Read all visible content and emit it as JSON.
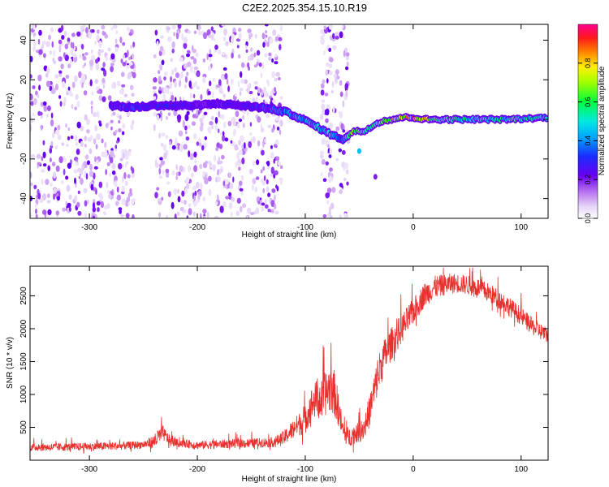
{
  "figure": {
    "title": "C2E2.2025.354.15.10.R19"
  },
  "chart_data": [
    {
      "type": "heatmap",
      "title": "",
      "xlabel": "Height of straight line (km)",
      "ylabel": "Frequency (Hz)",
      "xlim": [
        -355,
        125
      ],
      "ylim": [
        -50,
        48
      ],
      "x_ticks": [
        -300,
        -200,
        -100,
        0,
        100
      ],
      "x_tick_labels": [
        "-300",
        "-200",
        "-100",
        "0",
        "100"
      ],
      "y_ticks": [
        -40,
        -20,
        0,
        20,
        40
      ],
      "y_tick_labels": [
        "-40",
        "-20",
        "0",
        "20",
        "40"
      ],
      "colorbar": {
        "label": "Normalized spectral amplitude",
        "range": [
          0,
          1
        ],
        "ticks": [
          0.0,
          0.2,
          0.4,
          0.6,
          0.8
        ],
        "tick_labels": [
          "0.0",
          "0.2",
          "0.4",
          "0.6",
          "0.8"
        ],
        "colormap": "rainbow (white-violet-blue-cyan-green-yellow-red-magenta)"
      },
      "ridge": {
        "description_values": "dominant frequency track (x in km, y in Hz, amplitude 0-1)",
        "points": [
          [
            -280,
            7,
            0.3
          ],
          [
            -260,
            6,
            0.35
          ],
          [
            -240,
            7,
            0.3
          ],
          [
            -220,
            7,
            0.3
          ],
          [
            -200,
            7,
            0.25
          ],
          [
            -180,
            8,
            0.25
          ],
          [
            -160,
            7,
            0.25
          ],
          [
            -140,
            6,
            0.35
          ],
          [
            -120,
            4,
            0.4
          ],
          [
            -110,
            2,
            0.45
          ],
          [
            -95,
            -2,
            0.45
          ],
          [
            -85,
            -5,
            0.5
          ],
          [
            -75,
            -8,
            0.5
          ],
          [
            -65,
            -10,
            0.4
          ],
          [
            -55,
            -6,
            0.7
          ],
          [
            -45,
            -6,
            0.6
          ],
          [
            -40,
            -4,
            0.5
          ],
          [
            -30,
            -1,
            0.75
          ],
          [
            -20,
            0,
            0.8
          ],
          [
            -10,
            1,
            0.8
          ],
          [
            0,
            1,
            0.85
          ],
          [
            10,
            0,
            0.8
          ],
          [
            30,
            0,
            0.6
          ],
          [
            60,
            0,
            0.55
          ],
          [
            90,
            0,
            0.55
          ],
          [
            125,
            1,
            0.5
          ]
        ],
        "outliers": [
          [
            -50,
            -16,
            0.45
          ],
          [
            -35,
            -29,
            0.2
          ]
        ]
      },
      "noise_regions_x": [
        [
          -355,
          -258
        ],
        [
          -240,
          -122
        ],
        [
          -85,
          -60
        ]
      ],
      "grid": false
    },
    {
      "type": "line",
      "title": "",
      "xlabel": "Height of straight line (km)",
      "ylabel": "SNR (10 * v/v)",
      "xlim": [
        -355,
        125
      ],
      "ylim": [
        0,
        2950
      ],
      "x_ticks": [
        -300,
        -200,
        -100,
        0,
        100
      ],
      "x_tick_labels": [
        "-300",
        "-200",
        "-100",
        "0",
        "100"
      ],
      "y_ticks": [
        500,
        1000,
        1500,
        2000,
        2500
      ],
      "y_tick_labels": [
        "500",
        "1000",
        "1500",
        "2000",
        "2500"
      ],
      "color": "#e8302e",
      "series": [
        {
          "name": "",
          "envelope_points": [
            [
              -355,
              180
            ],
            [
              -330,
              180
            ],
            [
              -300,
              190
            ],
            [
              -270,
              200
            ],
            [
              -250,
              220
            ],
            [
              -240,
              250
            ],
            [
              -232,
              380
            ],
            [
              -225,
              260
            ],
            [
              -200,
              210
            ],
            [
              -170,
              230
            ],
            [
              -150,
              240
            ],
            [
              -130,
              250
            ],
            [
              -120,
              300
            ],
            [
              -110,
              450
            ],
            [
              -100,
              550
            ],
            [
              -95,
              750
            ],
            [
              -90,
              850
            ],
            [
              -85,
              800
            ],
            [
              -80,
              950
            ],
            [
              -75,
              1000
            ],
            [
              -70,
              750
            ],
            [
              -65,
              400
            ],
            [
              -60,
              300
            ],
            [
              -55,
              350
            ],
            [
              -50,
              380
            ],
            [
              -45,
              450
            ],
            [
              -40,
              700
            ],
            [
              -35,
              1050
            ],
            [
              -30,
              1350
            ],
            [
              -25,
              1550
            ],
            [
              -20,
              1700
            ],
            [
              -10,
              1950
            ],
            [
              0,
              2200
            ],
            [
              10,
              2450
            ],
            [
              20,
              2580
            ],
            [
              30,
              2620
            ],
            [
              40,
              2650
            ],
            [
              50,
              2620
            ],
            [
              60,
              2580
            ],
            [
              70,
              2500
            ],
            [
              80,
              2400
            ],
            [
              90,
              2280
            ],
            [
              100,
              2150
            ],
            [
              110,
              2000
            ],
            [
              125,
              1850
            ]
          ],
          "spike_amplitude_points": [
            [
              -355,
              120
            ],
            [
              -250,
              120
            ],
            [
              -235,
              250
            ],
            [
              -220,
              120
            ],
            [
              -130,
              150
            ],
            [
              -110,
              300
            ],
            [
              -95,
              500
            ],
            [
              -80,
              700
            ],
            [
              -75,
              800
            ],
            [
              -65,
              300
            ],
            [
              -50,
              300
            ],
            [
              -40,
              500
            ],
            [
              -30,
              600
            ],
            [
              -20,
              500
            ],
            [
              0,
              400
            ],
            [
              40,
              300
            ],
            [
              80,
              300
            ],
            [
              125,
              250
            ]
          ]
        }
      ],
      "grid": false
    }
  ]
}
